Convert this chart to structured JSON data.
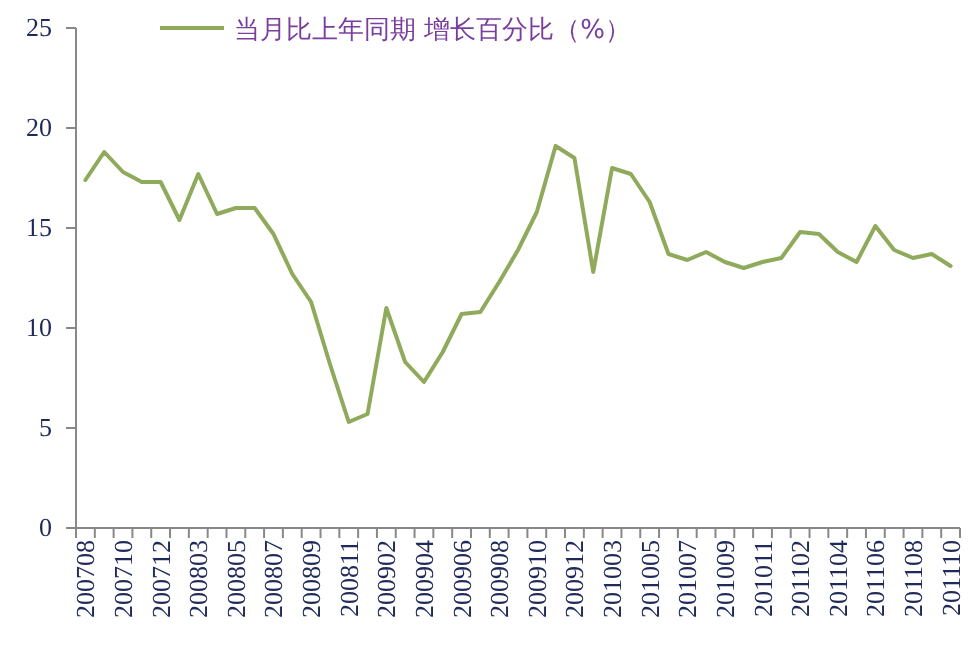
{
  "chart_data": {
    "type": "line",
    "categories": [
      "200708",
      null,
      "200710",
      null,
      "200712",
      null,
      "200803",
      null,
      "200805",
      null,
      "200807",
      null,
      "200809",
      null,
      "200811",
      null,
      "200902",
      null,
      "200904",
      null,
      "200906",
      null,
      "200908",
      null,
      "200910",
      null,
      "200912",
      null,
      "201003",
      null,
      "201005",
      null,
      "201007",
      null,
      "201009",
      null,
      "201011",
      null,
      "201102",
      null,
      "201104",
      null,
      "201106",
      null,
      "201108",
      null,
      "201110"
    ],
    "series": [
      {
        "name": "当月比上年同期 增长百分比（%）",
        "color": "#8faa5a",
        "values": [
          17.4,
          18.8,
          17.8,
          17.3,
          17.3,
          15.4,
          17.7,
          15.7,
          16.0,
          16.0,
          14.7,
          12.7,
          11.3,
          8.2,
          5.3,
          5.7,
          11.0,
          8.3,
          7.3,
          8.8,
          10.7,
          10.8,
          12.3,
          13.9,
          15.8,
          19.1,
          18.5,
          12.8,
          18.0,
          17.7,
          16.3,
          13.7,
          13.4,
          13.8,
          13.3,
          13.0,
          13.3,
          13.5,
          14.8,
          14.7,
          13.8,
          13.3,
          15.1,
          13.9,
          13.5,
          13.7,
          13.1
        ]
      }
    ],
    "ylim": [
      0,
      25
    ],
    "yticks": [
      0,
      5,
      10,
      15,
      20,
      25
    ],
    "legend": "top"
  }
}
